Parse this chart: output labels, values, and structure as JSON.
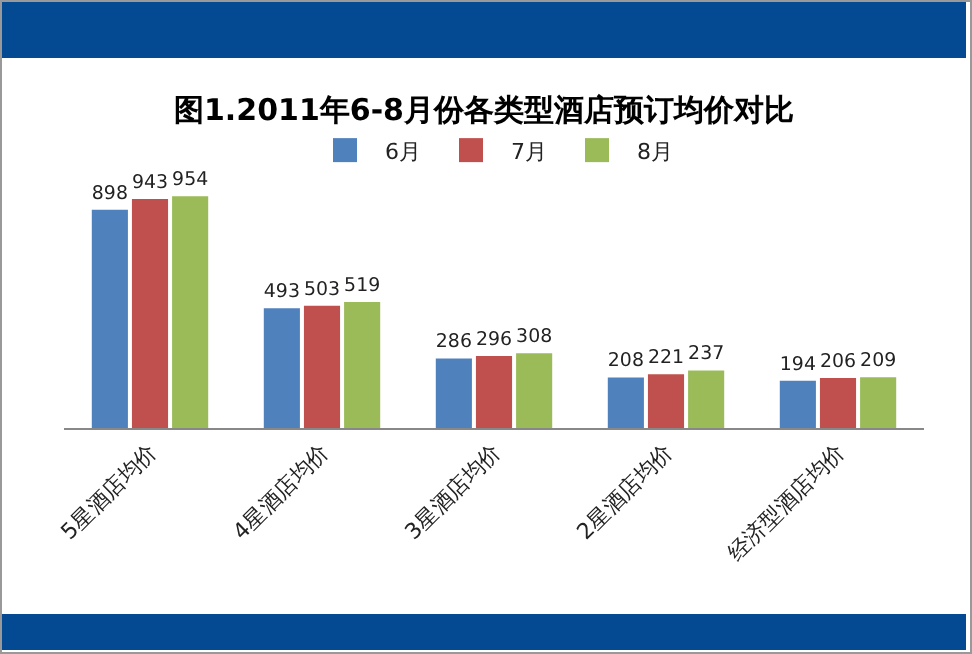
{
  "chart_data": {
    "type": "bar",
    "title": "图1.2011年6-8月份各类型酒店预订均价对比",
    "categories": [
      "5星酒店均价",
      "4星酒店均价",
      "3星酒店均价",
      "2星酒店均价",
      "经济型酒店均价"
    ],
    "series": [
      {
        "name": "6月",
        "color": "#4f81bd",
        "values": [
          898,
          493,
          286,
          208,
          194
        ]
      },
      {
        "name": "7月",
        "color": "#c0504d",
        "values": [
          943,
          503,
          296,
          221,
          206
        ]
      },
      {
        "name": "8月",
        "color": "#9bbb59",
        "values": [
          954,
          519,
          308,
          237,
          209
        ]
      }
    ],
    "data_labels": true,
    "legend": "top",
    "grid": false
  }
}
